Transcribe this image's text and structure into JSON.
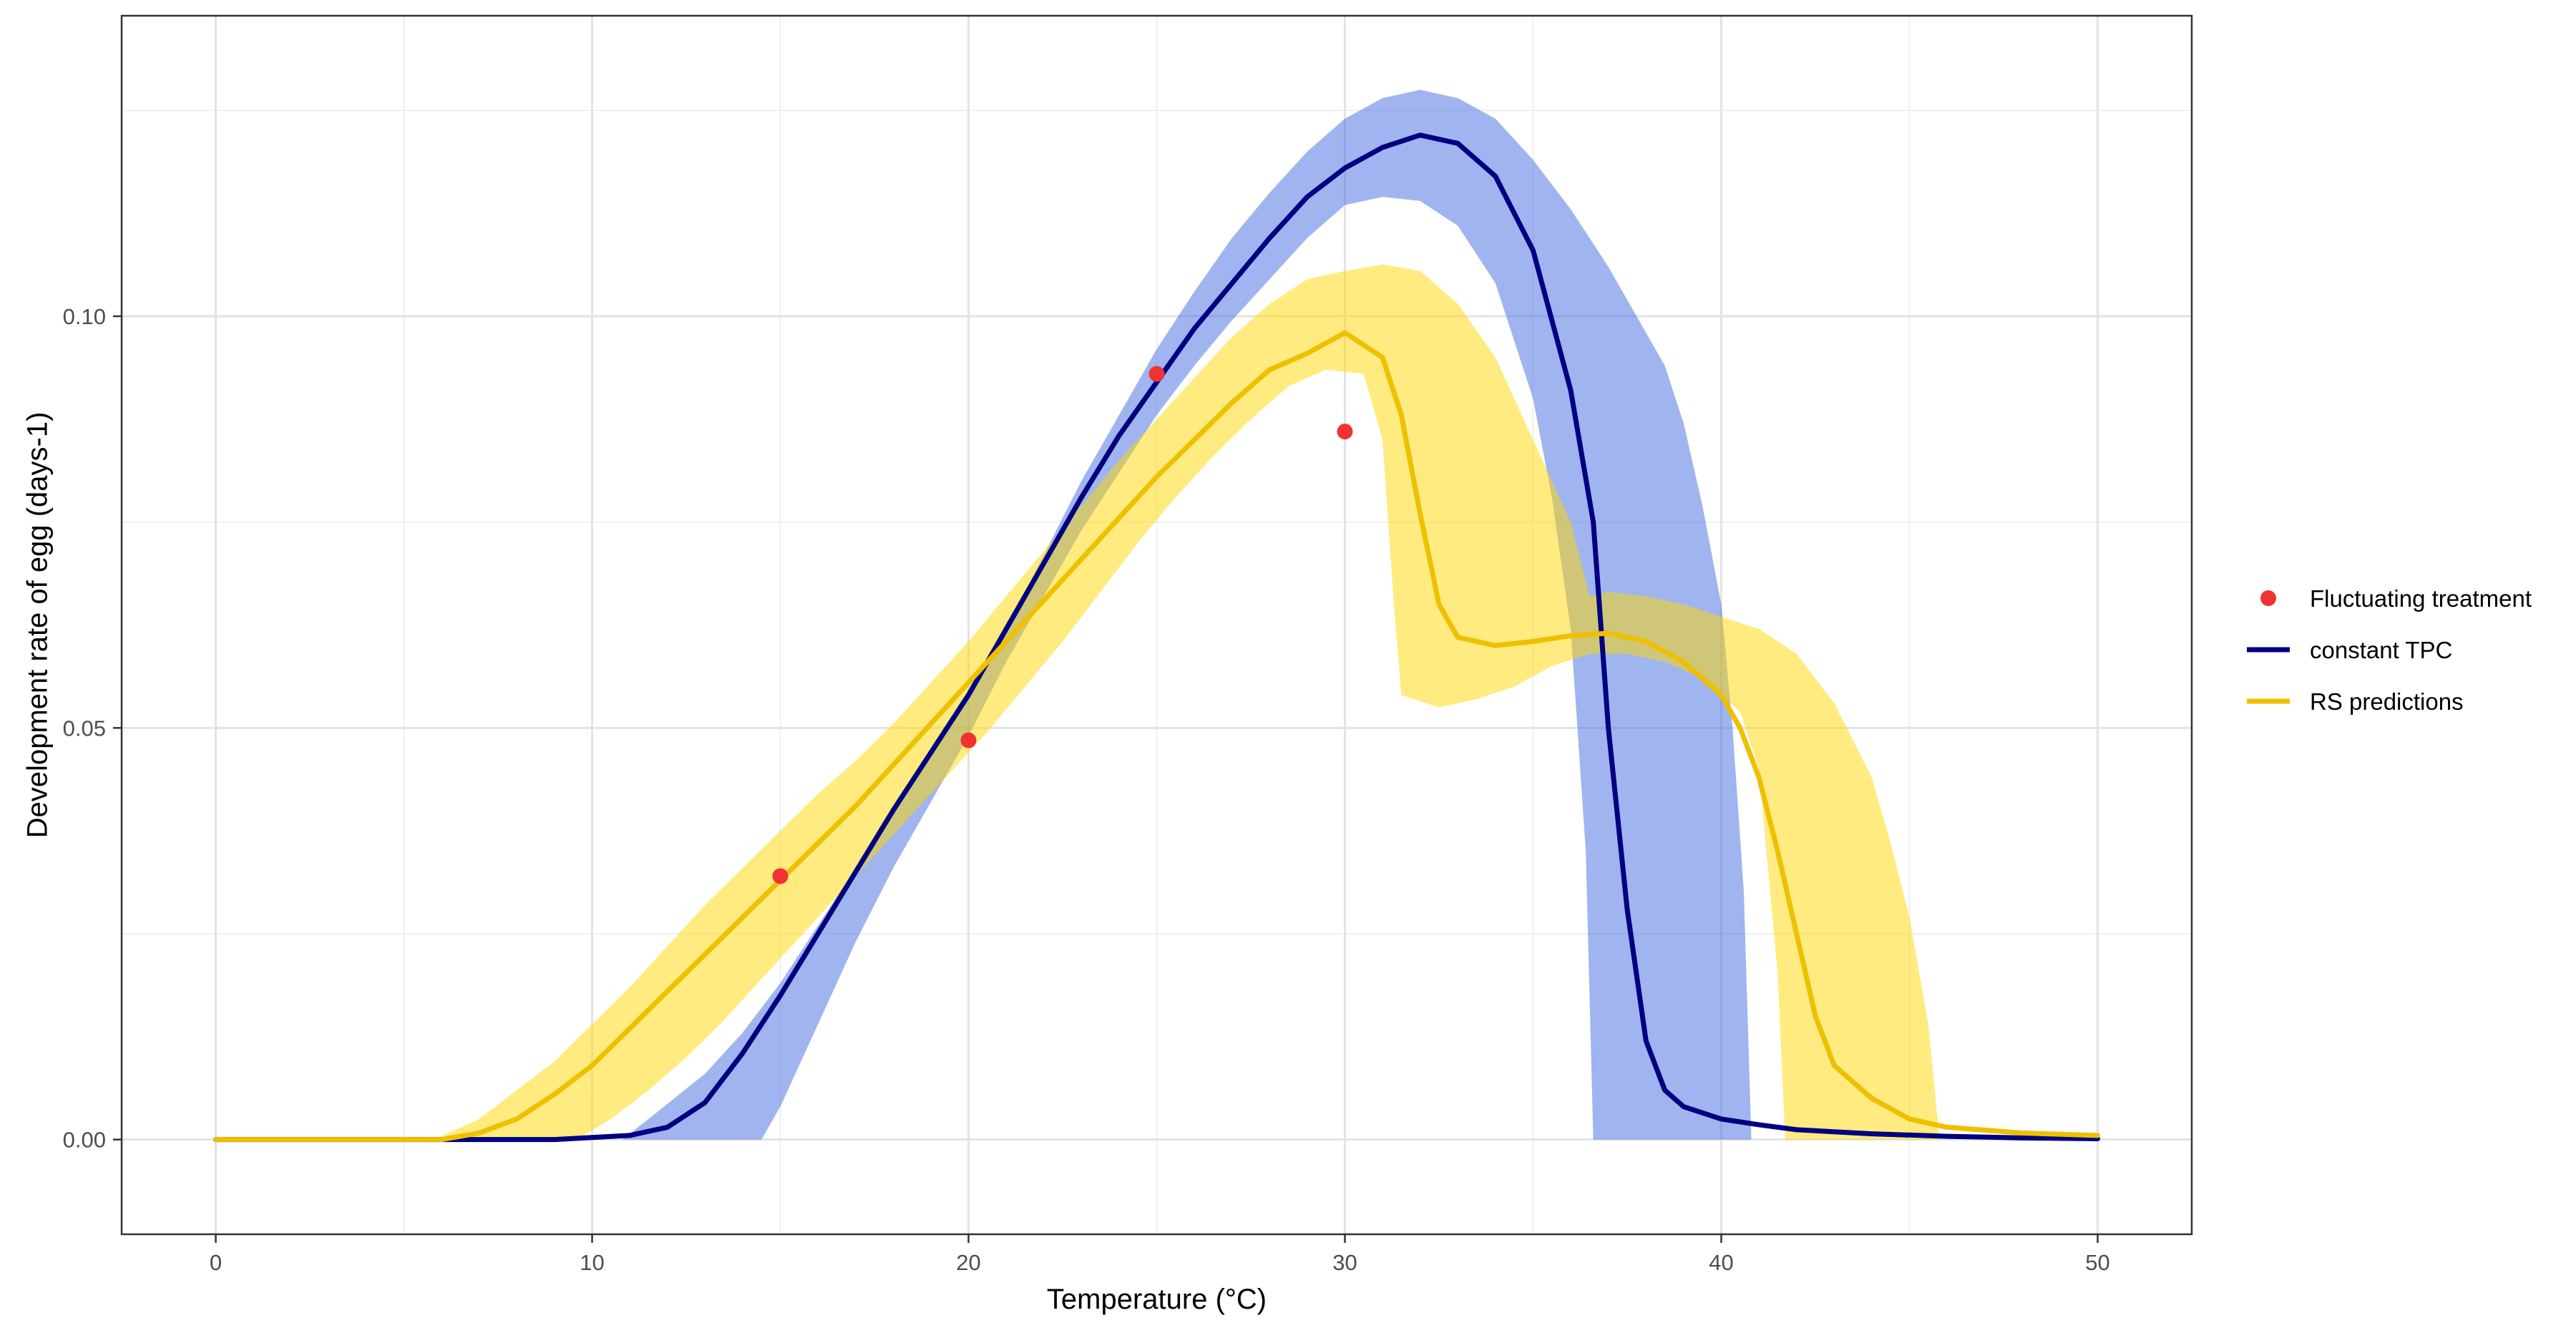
{
  "chart_data": {
    "type": "line",
    "xlabel": "Temperature (°C)",
    "ylabel": "Development rate of egg (days-1)",
    "xlim": [
      -2.5,
      52.5
    ],
    "ylim": [
      -0.0115,
      0.1365
    ],
    "x_ticks": [
      0,
      10,
      20,
      30,
      40,
      50
    ],
    "x_tick_labels": [
      "0",
      "10",
      "20",
      "30",
      "40",
      "50"
    ],
    "y_ticks": [
      0.0,
      0.05,
      0.1
    ],
    "y_tick_labels": [
      "0.00",
      "0.05",
      "0.10"
    ],
    "grid": true,
    "legend_position": "right",
    "legend": [
      {
        "label": "Fluctuating treatment",
        "kind": "point",
        "color": "#f03232"
      },
      {
        "label": "constant TPC",
        "kind": "line",
        "color": "#000080"
      },
      {
        "label": "RS predictions",
        "kind": "line",
        "color": "#eec000"
      }
    ],
    "series": [
      {
        "name": "Fluctuating treatment",
        "kind": "points",
        "color": "#f03232",
        "points": [
          [
            15,
            0.032
          ],
          [
            20,
            0.0485
          ],
          [
            25,
            0.093
          ],
          [
            30,
            0.086
          ]
        ]
      },
      {
        "name": "constant TPC",
        "kind": "line",
        "color": "#000080",
        "band_color": "#4169e1",
        "band_opacity": 0.5,
        "points": [
          [
            0,
            0.0
          ],
          [
            9,
            0.0
          ],
          [
            11,
            0.0005
          ],
          [
            12,
            0.0015
          ],
          [
            13,
            0.0045
          ],
          [
            14,
            0.0105
          ],
          [
            15,
            0.0175
          ],
          [
            16,
            0.025
          ],
          [
            17,
            0.0325
          ],
          [
            18,
            0.04
          ],
          [
            19,
            0.047
          ],
          [
            20,
            0.054
          ],
          [
            21,
            0.062
          ],
          [
            22,
            0.07
          ],
          [
            23,
            0.078
          ],
          [
            24,
            0.0855
          ],
          [
            25,
            0.092
          ],
          [
            26,
            0.0985
          ],
          [
            27,
            0.104
          ],
          [
            28,
            0.1095
          ],
          [
            29,
            0.1145
          ],
          [
            30,
            0.118
          ],
          [
            31,
            0.1205
          ],
          [
            32,
            0.122
          ],
          [
            33,
            0.121
          ],
          [
            34,
            0.117
          ],
          [
            35,
            0.108
          ],
          [
            36,
            0.091
          ],
          [
            36.6,
            0.075
          ],
          [
            37,
            0.05
          ],
          [
            37.5,
            0.028
          ],
          [
            38,
            0.012
          ],
          [
            38.5,
            0.006
          ],
          [
            39,
            0.004
          ],
          [
            40,
            0.0025
          ],
          [
            41,
            0.0018
          ],
          [
            42,
            0.0012
          ],
          [
            44,
            0.0007
          ],
          [
            46,
            0.0004
          ],
          [
            48,
            0.0002
          ],
          [
            50,
            0.0001
          ]
        ],
        "band_upper": [
          [
            10.8,
            0.0
          ],
          [
            11.5,
            0.0025
          ],
          [
            13,
            0.008
          ],
          [
            14,
            0.013
          ],
          [
            15,
            0.019
          ],
          [
            16,
            0.026
          ],
          [
            17,
            0.033
          ],
          [
            18,
            0.04
          ],
          [
            19,
            0.047
          ],
          [
            20,
            0.054
          ],
          [
            21,
            0.062
          ],
          [
            22,
            0.071
          ],
          [
            23,
            0.08
          ],
          [
            24,
            0.088
          ],
          [
            25,
            0.096
          ],
          [
            26,
            0.103
          ],
          [
            27,
            0.1095
          ],
          [
            28,
            0.115
          ],
          [
            29,
            0.12
          ],
          [
            30,
            0.124
          ],
          [
            31,
            0.1265
          ],
          [
            32,
            0.1275
          ],
          [
            33,
            0.1265
          ],
          [
            34,
            0.124
          ],
          [
            35,
            0.119
          ],
          [
            36,
            0.113
          ],
          [
            37,
            0.106
          ],
          [
            38,
            0.098
          ],
          [
            38.5,
            0.094
          ],
          [
            39,
            0.087
          ],
          [
            39.5,
            0.077
          ],
          [
            40,
            0.065
          ],
          [
            40.3,
            0.05
          ],
          [
            40.6,
            0.03
          ],
          [
            40.8,
            0.0
          ]
        ],
        "band_lower": [
          [
            14.5,
            0.0
          ],
          [
            15,
            0.004
          ],
          [
            16,
            0.014
          ],
          [
            17,
            0.024
          ],
          [
            18,
            0.033
          ],
          [
            19,
            0.041
          ],
          [
            20,
            0.049
          ],
          [
            21,
            0.058
          ],
          [
            22,
            0.066
          ],
          [
            23,
            0.074
          ],
          [
            24,
            0.081
          ],
          [
            25,
            0.088
          ],
          [
            26,
            0.094
          ],
          [
            27,
            0.0995
          ],
          [
            28,
            0.1045
          ],
          [
            29,
            0.1095
          ],
          [
            30,
            0.1135
          ],
          [
            31,
            0.1145
          ],
          [
            32,
            0.114
          ],
          [
            33,
            0.111
          ],
          [
            34,
            0.104
          ],
          [
            35,
            0.09
          ],
          [
            35.5,
            0.078
          ],
          [
            36,
            0.062
          ],
          [
            36.4,
            0.035
          ],
          [
            36.6,
            0.0
          ]
        ]
      },
      {
        "name": "RS predictions",
        "kind": "line",
        "color": "#eec000",
        "band_color": "#ffd700",
        "band_opacity": 0.5,
        "points": [
          [
            0,
            0.0
          ],
          [
            6,
            0.0
          ],
          [
            7,
            0.0008
          ],
          [
            8,
            0.0025
          ],
          [
            9,
            0.0055
          ],
          [
            10,
            0.009
          ],
          [
            11,
            0.0135
          ],
          [
            12,
            0.018
          ],
          [
            13,
            0.0225
          ],
          [
            14,
            0.027
          ],
          [
            15,
            0.0315
          ],
          [
            16,
            0.036
          ],
          [
            17,
            0.0405
          ],
          [
            18,
            0.0455
          ],
          [
            19,
            0.0505
          ],
          [
            20,
            0.0555
          ],
          [
            21,
            0.0605
          ],
          [
            22,
            0.0655
          ],
          [
            23,
            0.0705
          ],
          [
            24,
            0.0755
          ],
          [
            25,
            0.0805
          ],
          [
            26,
            0.085
          ],
          [
            27,
            0.0895
          ],
          [
            28,
            0.0935
          ],
          [
            29,
            0.0955
          ],
          [
            30,
            0.098
          ],
          [
            31,
            0.095
          ],
          [
            31.5,
            0.088
          ],
          [
            32,
            0.076
          ],
          [
            32.5,
            0.065
          ],
          [
            33,
            0.061
          ],
          [
            34,
            0.06
          ],
          [
            35,
            0.0605
          ],
          [
            36,
            0.0612
          ],
          [
            37,
            0.0615
          ],
          [
            38,
            0.0605
          ],
          [
            39,
            0.058
          ],
          [
            40,
            0.054
          ],
          [
            40.5,
            0.05
          ],
          [
            41,
            0.044
          ],
          [
            41.5,
            0.035
          ],
          [
            42,
            0.025
          ],
          [
            42.5,
            0.015
          ],
          [
            43,
            0.009
          ],
          [
            44,
            0.005
          ],
          [
            45,
            0.0025
          ],
          [
            46,
            0.0015
          ],
          [
            48,
            0.0008
          ],
          [
            50,
            0.0005
          ]
        ],
        "band_upper": [
          [
            5.8,
            0.0
          ],
          [
            7,
            0.0025
          ],
          [
            8,
            0.006
          ],
          [
            9,
            0.0095
          ],
          [
            10,
            0.014
          ],
          [
            11,
            0.0185
          ],
          [
            12,
            0.0235
          ],
          [
            13,
            0.0285
          ],
          [
            14,
            0.033
          ],
          [
            15,
            0.0375
          ],
          [
            16,
            0.042
          ],
          [
            17,
            0.046
          ],
          [
            18,
            0.0505
          ],
          [
            19,
            0.0555
          ],
          [
            20,
            0.0605
          ],
          [
            21,
            0.066
          ],
          [
            22,
            0.0715
          ],
          [
            23,
            0.077
          ],
          [
            24,
            0.0825
          ],
          [
            25,
            0.0875
          ],
          [
            26,
            0.0925
          ],
          [
            27,
            0.0975
          ],
          [
            28,
            0.1015
          ],
          [
            29,
            0.1045
          ],
          [
            30,
            0.1055
          ],
          [
            31,
            0.1063
          ],
          [
            32,
            0.1055
          ],
          [
            33,
            0.1015
          ],
          [
            34,
            0.095
          ],
          [
            35,
            0.085
          ],
          [
            36,
            0.075
          ],
          [
            36.5,
            0.066
          ],
          [
            37,
            0.0665
          ],
          [
            38,
            0.066
          ],
          [
            39,
            0.065
          ],
          [
            40,
            0.0635
          ],
          [
            41,
            0.062
          ],
          [
            42,
            0.059
          ],
          [
            43,
            0.053
          ],
          [
            44,
            0.044
          ],
          [
            44.5,
            0.036
          ],
          [
            45,
            0.027
          ],
          [
            45.5,
            0.014
          ],
          [
            45.8,
            0.0
          ]
        ],
        "band_lower": [
          [
            9.6,
            0.0
          ],
          [
            10.5,
            0.0025
          ],
          [
            11.5,
            0.006
          ],
          [
            12.5,
            0.01
          ],
          [
            13.5,
            0.0145
          ],
          [
            14.5,
            0.0195
          ],
          [
            15.5,
            0.0245
          ],
          [
            16.5,
            0.0295
          ],
          [
            17.5,
            0.0345
          ],
          [
            18.5,
            0.0395
          ],
          [
            19.5,
            0.0445
          ],
          [
            20.5,
            0.0495
          ],
          [
            21.5,
            0.055
          ],
          [
            22.5,
            0.0605
          ],
          [
            23.5,
            0.0665
          ],
          [
            24.5,
            0.0725
          ],
          [
            25.5,
            0.078
          ],
          [
            26.5,
            0.083
          ],
          [
            27.5,
            0.0875
          ],
          [
            28.5,
            0.0915
          ],
          [
            29.5,
            0.0935
          ],
          [
            30.5,
            0.093
          ],
          [
            31,
            0.085
          ],
          [
            31.3,
            0.065
          ],
          [
            31.5,
            0.054
          ],
          [
            32.5,
            0.0525
          ],
          [
            33.5,
            0.0535
          ],
          [
            34.5,
            0.055
          ],
          [
            35.5,
            0.0575
          ],
          [
            36.5,
            0.059
          ],
          [
            37.5,
            0.059
          ],
          [
            38.5,
            0.058
          ],
          [
            39.5,
            0.056
          ],
          [
            40.5,
            0.052
          ],
          [
            41,
            0.045
          ],
          [
            41.5,
            0.02
          ],
          [
            41.7,
            0.0
          ]
        ]
      }
    ]
  }
}
